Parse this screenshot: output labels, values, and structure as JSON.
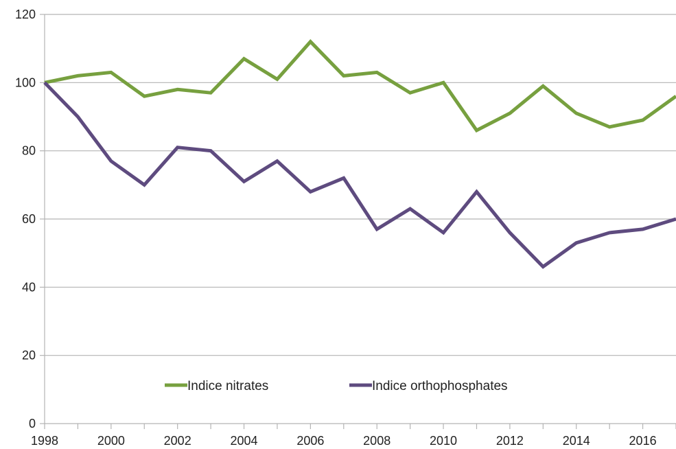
{
  "chart_data": {
    "type": "line",
    "title": "",
    "xlabel": "",
    "ylabel": "",
    "xlim": [
      1998,
      2017
    ],
    "ylim": [
      0,
      120
    ],
    "x_ticks": [
      1998,
      2000,
      2002,
      2004,
      2006,
      2008,
      2010,
      2012,
      2014,
      2016
    ],
    "y_ticks": [
      0,
      20,
      40,
      60,
      80,
      100,
      120
    ],
    "grid": "horizontal",
    "legend_position": "bottom-center",
    "x": [
      1998,
      1999,
      2000,
      2001,
      2002,
      2003,
      2004,
      2005,
      2006,
      2007,
      2008,
      2009,
      2010,
      2011,
      2012,
      2013,
      2014,
      2015,
      2016,
      2017
    ],
    "series": [
      {
        "name": "Indice nitrates",
        "color": "#77a03f",
        "values": [
          100,
          102,
          103,
          96,
          98,
          97,
          107,
          101,
          112,
          102,
          103,
          97,
          100,
          86,
          91,
          99,
          91,
          87,
          89,
          96
        ]
      },
      {
        "name": "Indice orthophosphates",
        "color": "#5e4b7f",
        "values": [
          100,
          90,
          77,
          70,
          81,
          80,
          71,
          77,
          68,
          72,
          57,
          63,
          56,
          68,
          56,
          46,
          53,
          56,
          57,
          60
        ]
      }
    ]
  }
}
